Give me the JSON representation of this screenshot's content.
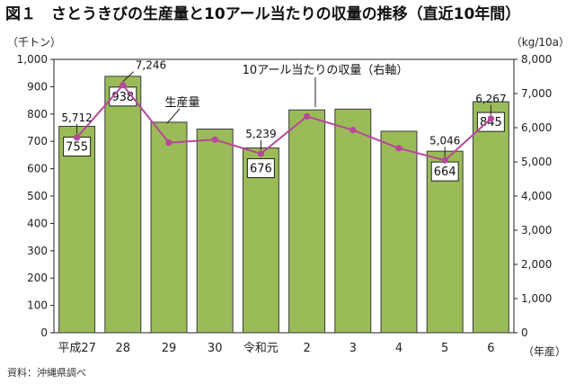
{
  "title": "図１　さとうきびの生産量と10アール当たりの収量の推移（直近10年間）",
  "left_unit": "（千トン）",
  "right_unit": "（kg/10a）",
  "x_unit": "（年産）",
  "source": "資料：沖縄県調べ",
  "annotations": {
    "bar_series": "生産量",
    "line_series": "10アール当たりの収量（右軸）"
  },
  "colors": {
    "bar_fill": "#9bbb59",
    "bar_stroke": "#3a3a3a",
    "line": "#b8479a"
  },
  "chart_data": {
    "type": "bar",
    "categories": [
      "平成27",
      "28",
      "29",
      "30",
      "令和元",
      "2",
      "3",
      "4",
      "5",
      "6"
    ],
    "series": [
      {
        "name": "生産量",
        "axis": "left",
        "values": [
          755,
          938,
          770,
          745,
          676,
          815,
          818,
          737,
          664,
          845
        ],
        "labels": [
          "755",
          "938",
          "",
          "",
          "676",
          "",
          "",
          "",
          "664",
          "845"
        ]
      },
      {
        "name": "10アール当たりの収量（右軸）",
        "axis": "right",
        "type": "line",
        "values": [
          5712,
          7246,
          5560,
          5650,
          5239,
          6330,
          5930,
          5400,
          5046,
          6267
        ],
        "labels": [
          "5,712",
          "7,246",
          "",
          "",
          "5,239",
          "",
          "",
          "",
          "5,046",
          "6,267"
        ]
      }
    ],
    "y_left": {
      "ylim": [
        0,
        1000
      ],
      "ticks": [
        "0",
        "100",
        "200",
        "300",
        "400",
        "500",
        "600",
        "700",
        "800",
        "900",
        "1,000"
      ]
    },
    "y_right": {
      "ylim": [
        0,
        8000
      ],
      "ticks": [
        "0",
        "1,000",
        "2,000",
        "3,000",
        "4,000",
        "5,000",
        "6,000",
        "7,000",
        "8,000"
      ]
    },
    "grid": false,
    "legend": "none"
  }
}
